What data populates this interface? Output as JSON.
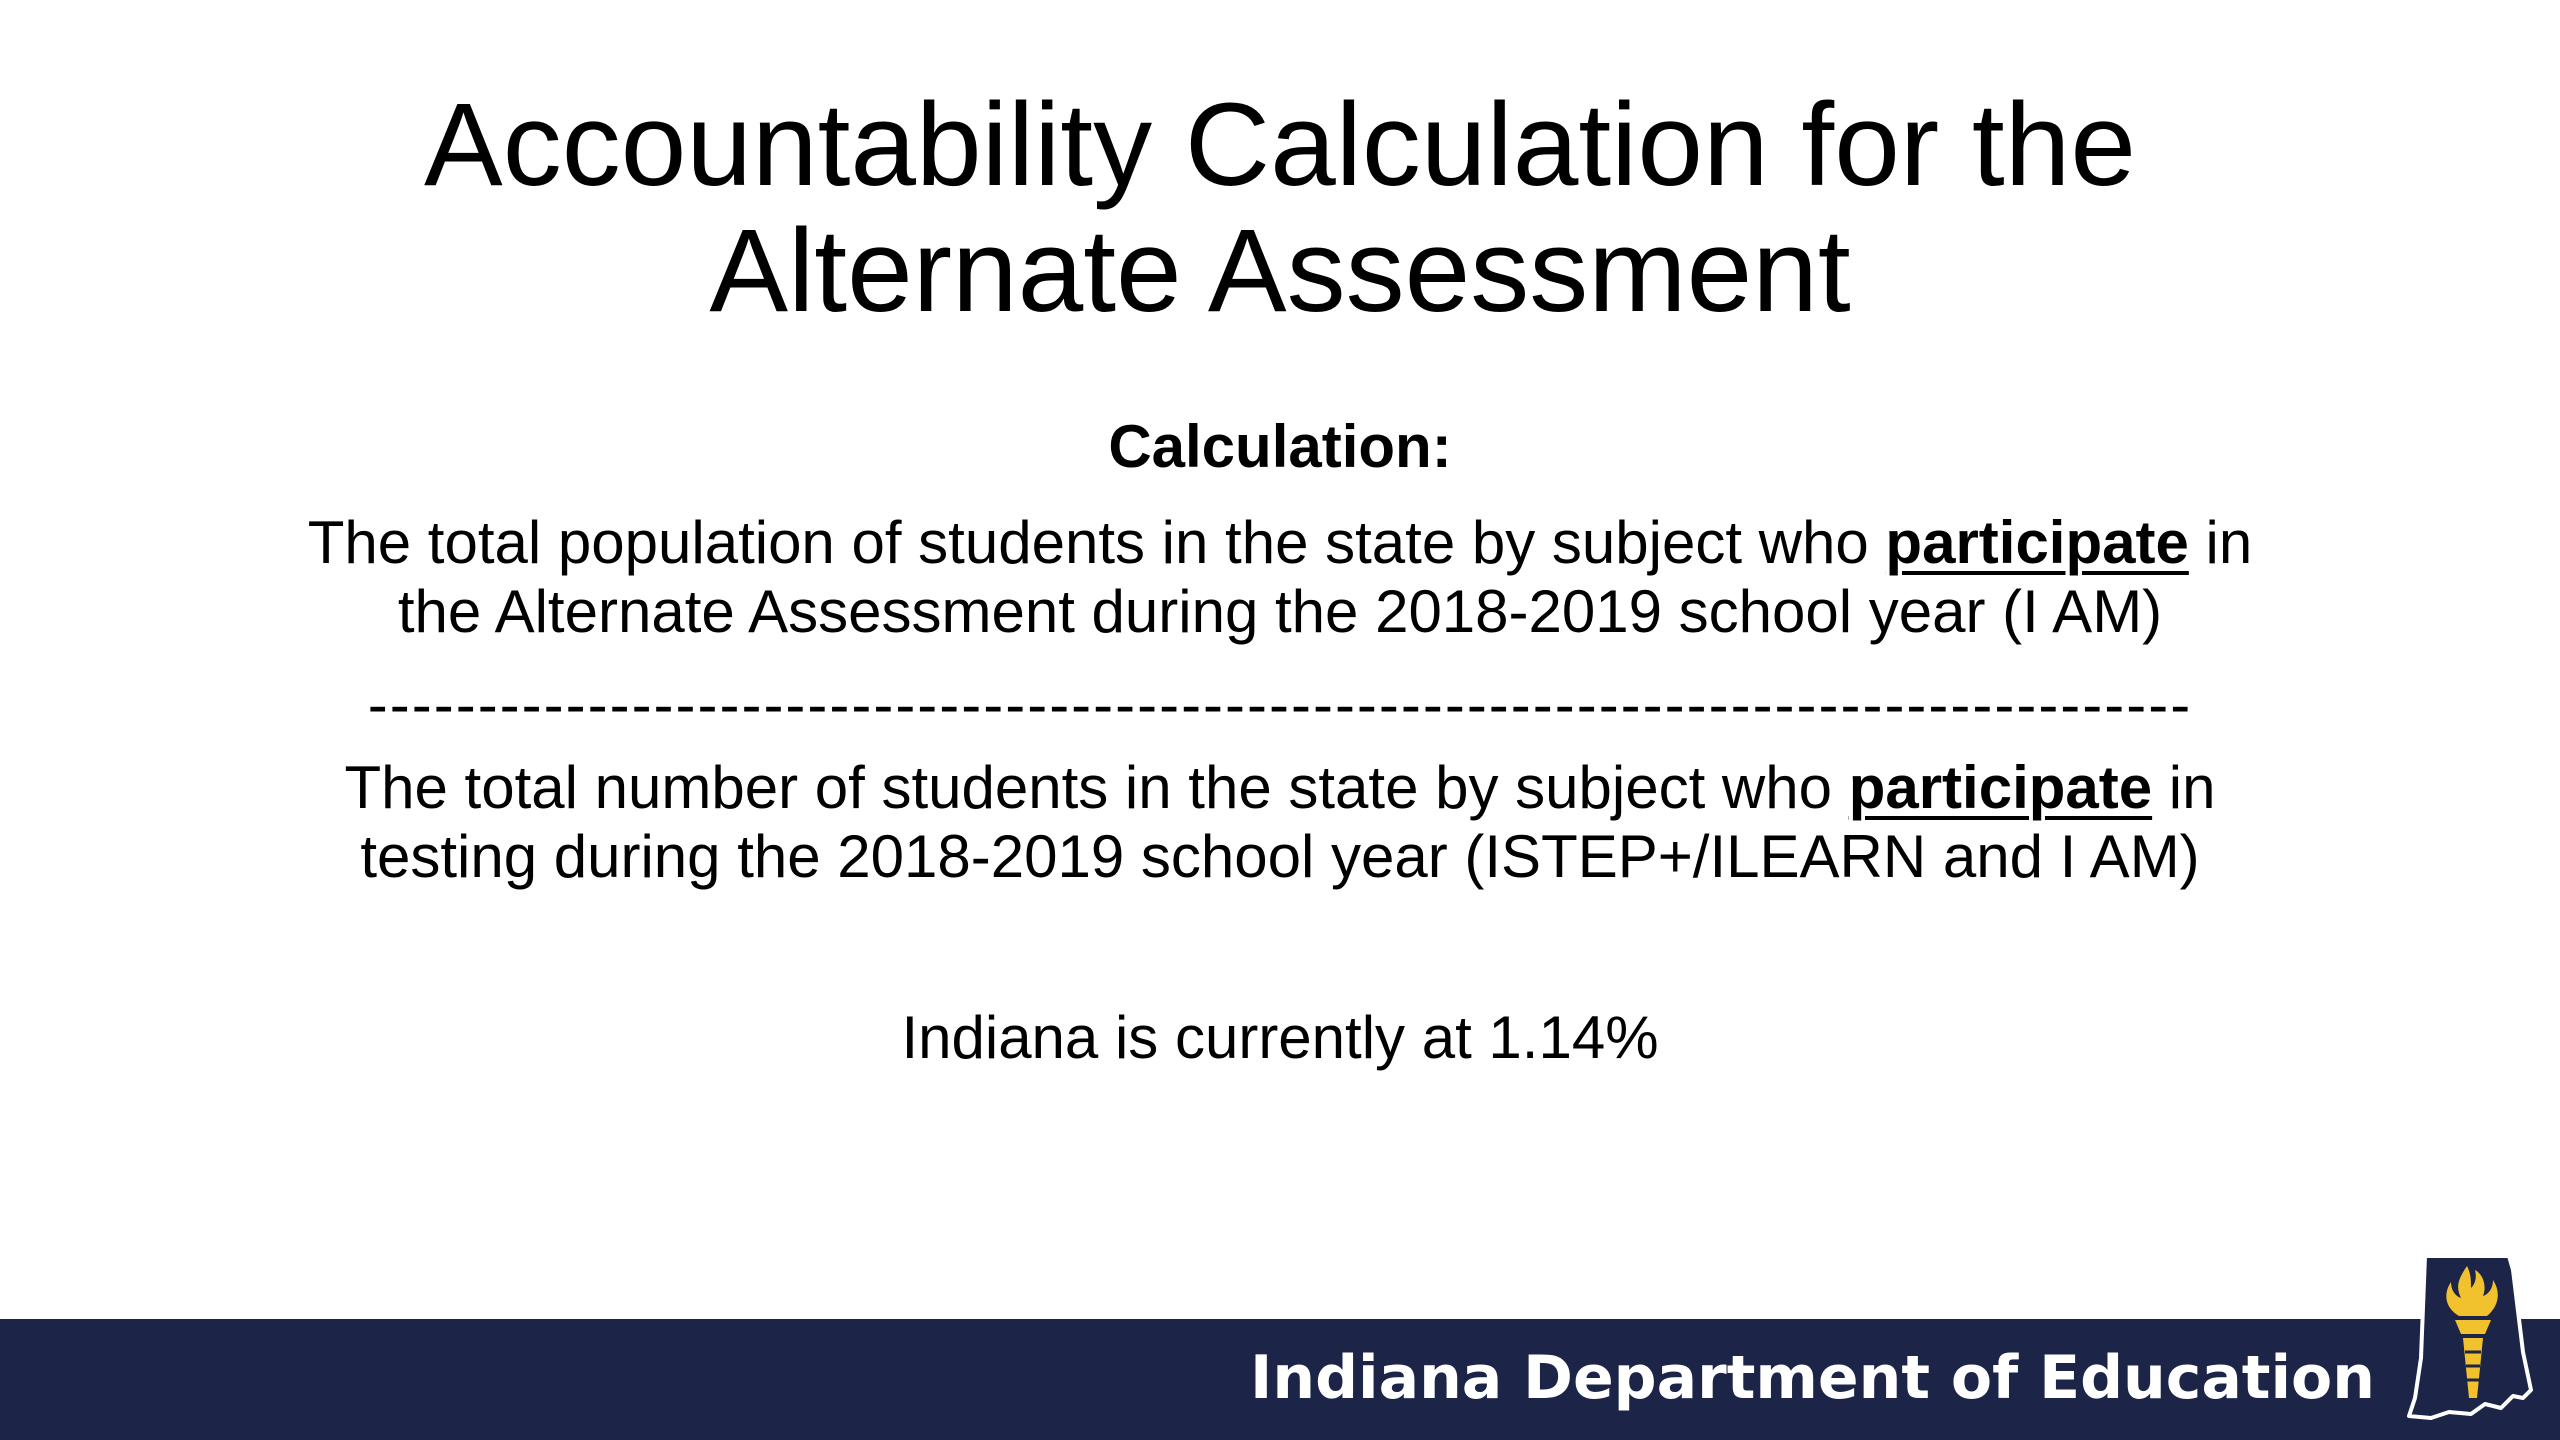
{
  "title": {
    "line1": "Accountability Calculation for the",
    "line2": "Alternate Assessment"
  },
  "calculation_label": "Calculation:",
  "numerator": {
    "line1_before": "The total population of students in the state by subject who ",
    "line1_emphasis": "participate",
    "line1_after": " in",
    "line2": "the Alternate Assessment during the 2018-2019 school year (I AM)"
  },
  "divider": "-----------------------------------------------------------------------------------",
  "denominator": {
    "line1_before": "The total number of students in the state by subject who ",
    "line1_emphasis": "participate",
    "line1_after": " in",
    "line2": "testing during the 2018-2019 school year (ISTEP+/ILEARN and I AM)"
  },
  "status": "Indiana is currently at 1.14%",
  "footer": {
    "organization": "Indiana Department of Education",
    "logo_icon": "indiana-torch-logo-icon"
  },
  "colors": {
    "footer_bg": "#1c2448",
    "torch_gold": "#f2c12e",
    "text": "#000000"
  }
}
